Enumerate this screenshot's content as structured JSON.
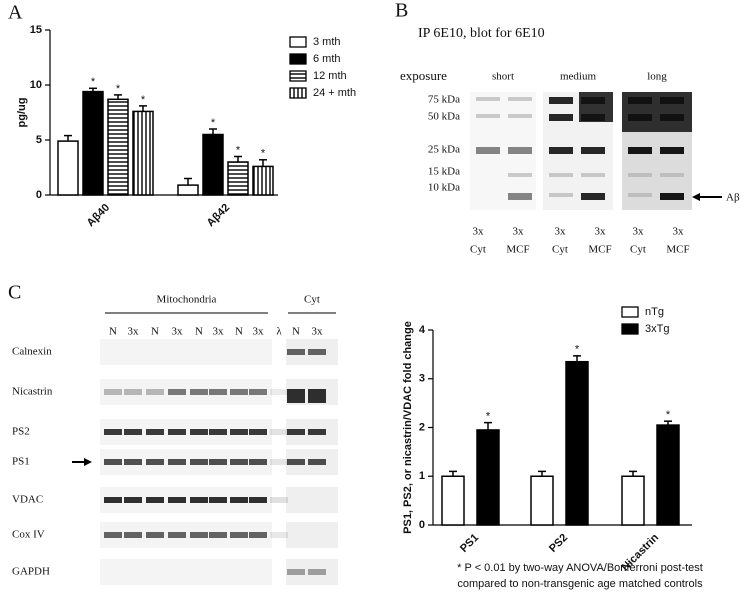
{
  "chart_data": [
    {
      "type": "bar",
      "panel": "A",
      "ylabel": "pg/ug",
      "categories": [
        "Aβ40",
        "Aβ42"
      ],
      "ylim": [
        0,
        15
      ],
      "yticks": [
        0,
        5,
        10,
        15
      ],
      "legend": "upper right",
      "series": [
        {
          "name": "3 mth",
          "color": "#ffffff",
          "hatch": "none",
          "values": [
            4.9,
            0.9
          ],
          "errors": [
            0.5,
            0.6
          ],
          "annotations": [
            null,
            null
          ]
        },
        {
          "name": "6 mth",
          "color": "#000000",
          "hatch": "none",
          "values": [
            9.4,
            5.5
          ],
          "errors": [
            0.3,
            0.5
          ],
          "annotations": [
            "*",
            "*"
          ]
        },
        {
          "name": "12 mth",
          "color": "#ffffff",
          "hatch": "horizontal",
          "values": [
            8.7,
            3.0
          ],
          "errors": [
            0.4,
            0.5
          ],
          "annotations": [
            "*",
            "*"
          ]
        },
        {
          "name": "24 + mth",
          "color": "#ffffff",
          "hatch": "vertical",
          "values": [
            7.6,
            2.6
          ],
          "errors": [
            0.5,
            0.6
          ],
          "annotations": [
            "*",
            "*"
          ]
        }
      ]
    },
    {
      "type": "bar",
      "ylabel": "PS1, PS2, or nicastrin/VDAC fold change",
      "categories": [
        "PS1",
        "PS2",
        "Nicastrin"
      ],
      "ylim": [
        0,
        4
      ],
      "yticks": [
        0,
        1,
        2,
        3,
        4
      ],
      "legend": "upper right",
      "series": [
        {
          "name": "nTg",
          "color": "#ffffff",
          "hatch": "none",
          "values": [
            1,
            1,
            1
          ],
          "errors": [
            0.1,
            0.1,
            0.1
          ],
          "annotations": [
            null,
            null,
            null
          ]
        },
        {
          "name": "3xTg",
          "color": "#000000",
          "hatch": "none",
          "values": [
            1.95,
            3.35,
            2.05
          ],
          "errors": [
            0.15,
            0.12,
            0.08
          ],
          "annotations": [
            "*",
            "*",
            "*"
          ]
        }
      ],
      "footnote": [
        "* P < 0.01 by two-way ANOVA/Bonferroni post-test",
        "compared to non-transgenic age matched controls"
      ]
    }
  ],
  "panel_b": {
    "label": "B",
    "title": "IP 6E10, blot for 6E10",
    "exposure": "exposure",
    "exposures": [
      "short",
      "medium",
      "long"
    ],
    "markers": [
      "75 kDa",
      "50 kDa",
      "25 kDa",
      "15 kDa",
      "10 kDa"
    ],
    "band_label": "Aβ",
    "lanes": [
      [
        "3x",
        "Cyt"
      ],
      [
        "3x",
        "MCF"
      ],
      [
        "3x",
        "Cyt"
      ],
      [
        "3x",
        "MCF"
      ],
      [
        "3x",
        "Cyt"
      ],
      [
        "3x",
        "MCF"
      ]
    ]
  },
  "panel_c": {
    "label": "C",
    "groups": [
      "Mitochondria",
      "Cyt"
    ],
    "lanes": [
      "N",
      "3x",
      "N",
      "3x",
      "N",
      "3x",
      "N",
      "3x",
      "λ",
      "N",
      "3x"
    ],
    "rows": [
      "Calnexin",
      "Nicastrin",
      "PS2",
      "PS1",
      "VDAC",
      "Cox IV",
      "GAPDH"
    ]
  }
}
